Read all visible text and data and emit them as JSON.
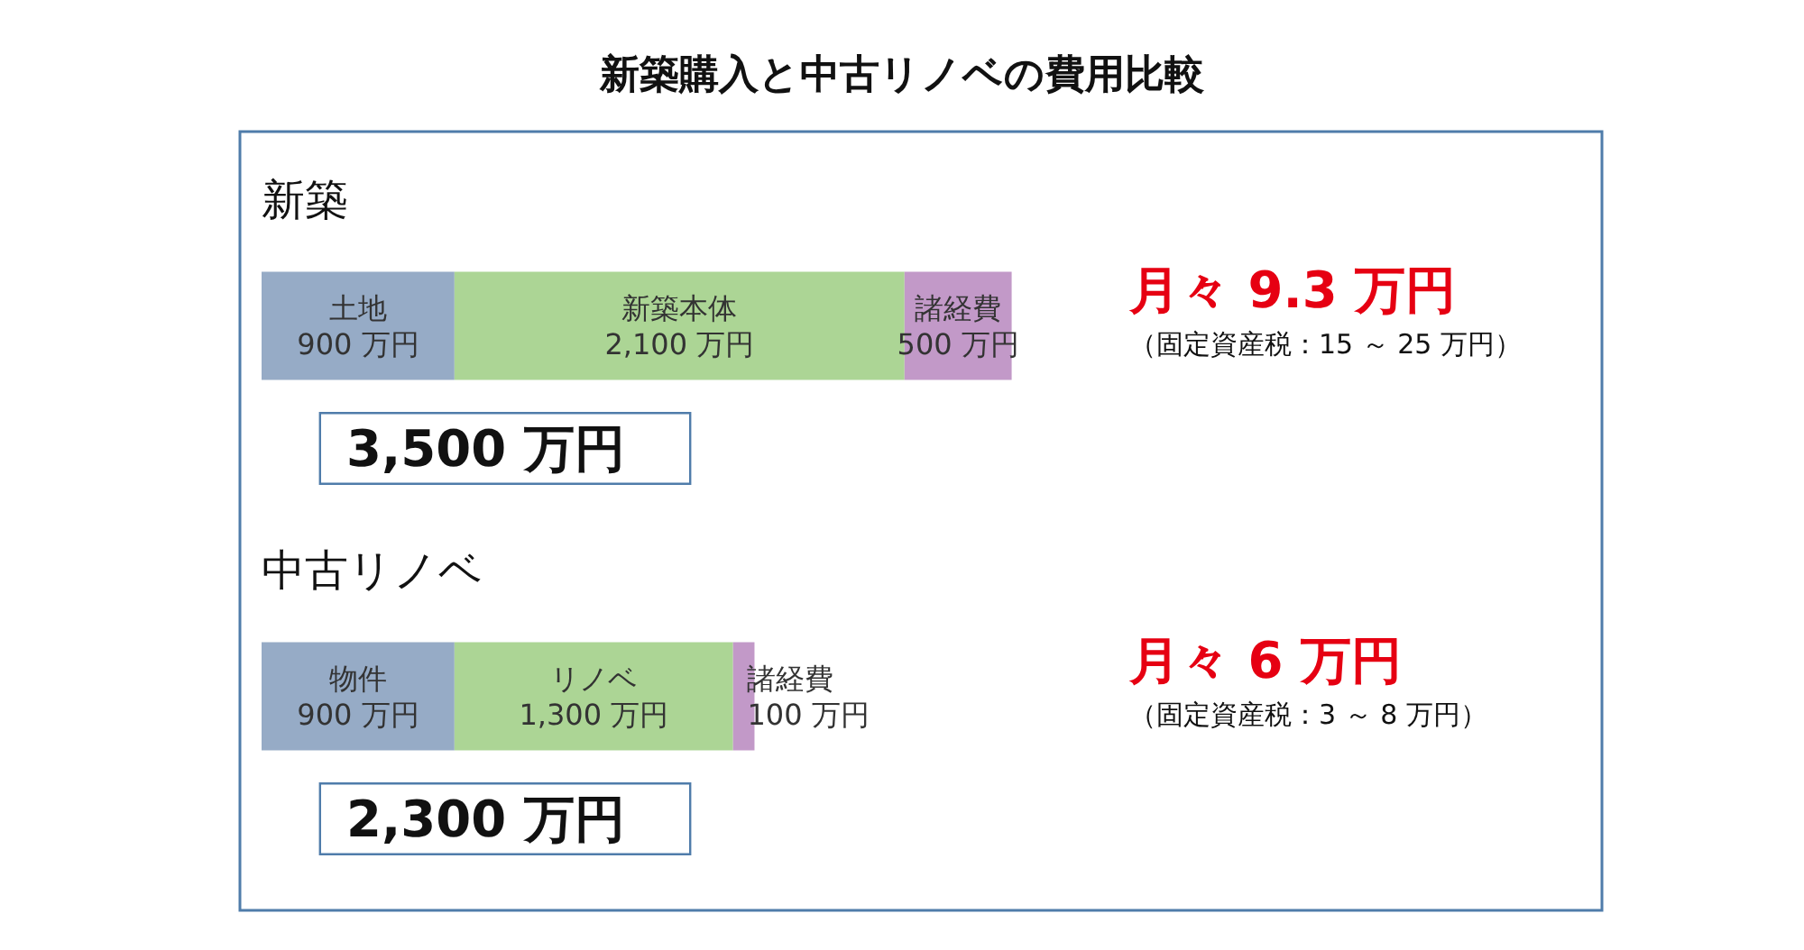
{
  "chart_data": {
    "type": "bar",
    "orientation": "horizontal",
    "stacked": true,
    "title": "新築購入と中古リノベの費用比較",
    "categories": [
      "新築",
      "中古リノベ"
    ],
    "series": [
      {
        "color": "#96abc6",
        "values": [
          900,
          900
        ],
        "value_labels": [
          "土地\n900 万円",
          "物件\n900 万円"
        ]
      },
      {
        "color": "#acd595",
        "values": [
          2100,
          1300
        ],
        "value_labels": [
          "新築本体\n2,100 万円",
          "リノベ\n1,300 万円"
        ]
      },
      {
        "color": "#c299c8",
        "values": [
          500,
          100
        ],
        "value_labels": [
          "諸経費\n500 万円",
          "諸経費\n100 万円"
        ]
      }
    ],
    "totals": [
      "3,500 万円",
      "2,300 万円"
    ],
    "annotations": [
      "月々 9.3 万円",
      "（固定資産税：15 ～ 25 万円）",
      "月々 6 万円",
      "（固定資産税：3 ～ 8 万円）"
    ]
  }
}
